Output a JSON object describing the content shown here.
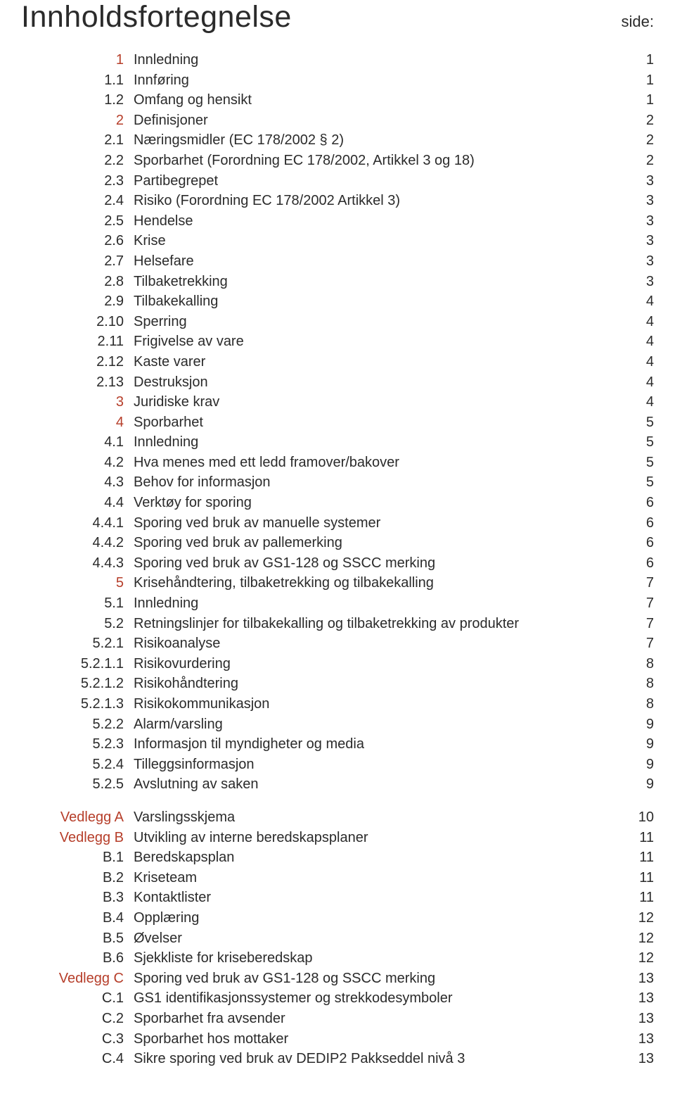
{
  "title": "Innholdsfortegnelse",
  "side_label": "side:",
  "colors": {
    "accent": "#b63e2a",
    "text": "#2b2b2b",
    "background": "#ffffff"
  },
  "typography": {
    "title_fontsize_pt": 32,
    "body_fontsize_pt": 15,
    "side_fontsize_pt": 16,
    "font_family": "Helvetica"
  },
  "blocks": [
    {
      "entries": [
        {
          "num": "1",
          "num_color": "red",
          "text": "Innledning",
          "page": "1"
        },
        {
          "num": "1.1",
          "num_color": "black",
          "text": "Innføring",
          "page": "1"
        },
        {
          "num": "1.2",
          "num_color": "black",
          "text": "Omfang og hensikt",
          "page": "1"
        },
        {
          "num": "2",
          "num_color": "red",
          "text": "Definisjoner",
          "page": "2"
        },
        {
          "num": "2.1",
          "num_color": "black",
          "text": "Næringsmidler (EC 178/2002 § 2)",
          "page": "2"
        },
        {
          "num": "2.2",
          "num_color": "black",
          "text": "Sporbarhet (Forordning EC 178/2002, Artikkel 3 og 18)",
          "page": "2"
        },
        {
          "num": "2.3",
          "num_color": "black",
          "text": "Partibegrepet",
          "page": "3"
        },
        {
          "num": "2.4",
          "num_color": "black",
          "text": "Risiko (Forordning EC 178/2002 Artikkel 3)",
          "page": "3"
        },
        {
          "num": "2.5",
          "num_color": "black",
          "text": "Hendelse",
          "page": "3"
        },
        {
          "num": "2.6",
          "num_color": "black",
          "text": "Krise",
          "page": "3"
        },
        {
          "num": "2.7",
          "num_color": "black",
          "text": "Helsefare",
          "page": "3"
        },
        {
          "num": "2.8",
          "num_color": "black",
          "text": "Tilbaketrekking",
          "page": "3"
        },
        {
          "num": "2.9",
          "num_color": "black",
          "text": "Tilbakekalling",
          "page": "4"
        },
        {
          "num": "2.10",
          "num_color": "black",
          "text": "Sperring",
          "page": "4"
        },
        {
          "num": "2.11",
          "num_color": "black",
          "text": "Frigivelse av vare",
          "page": "4"
        },
        {
          "num": "2.12",
          "num_color": "black",
          "text": "Kaste varer",
          "page": "4"
        },
        {
          "num": "2.13",
          "num_color": "black",
          "text": "Destruksjon",
          "page": "4"
        },
        {
          "num": "3",
          "num_color": "red",
          "text": "Juridiske krav",
          "page": "4"
        },
        {
          "num": "4",
          "num_color": "red",
          "text": "Sporbarhet",
          "page": "5"
        },
        {
          "num": "4.1",
          "num_color": "black",
          "text": "Innledning",
          "page": "5"
        },
        {
          "num": "4.2",
          "num_color": "black",
          "text": "Hva menes med ett ledd framover/bakover",
          "page": "5"
        },
        {
          "num": "4.3",
          "num_color": "black",
          "text": "Behov for informasjon",
          "page": "5"
        },
        {
          "num": "4.4",
          "num_color": "black",
          "text": "Verktøy for sporing",
          "page": "6"
        },
        {
          "num": "4.4.1",
          "num_color": "black",
          "text": "Sporing ved bruk av manuelle systemer",
          "page": "6"
        },
        {
          "num": "4.4.2",
          "num_color": "black",
          "text": "Sporing ved bruk av pallemerking",
          "page": "6"
        },
        {
          "num": "4.4.3",
          "num_color": "black",
          "text": "Sporing ved bruk av GS1-128 og SSCC merking",
          "page": "6"
        },
        {
          "num": "5",
          "num_color": "red",
          "text": "Krisehåndtering, tilbaketrekking og tilbakekalling",
          "page": "7"
        },
        {
          "num": "5.1",
          "num_color": "black",
          "text": "Innledning",
          "page": "7"
        },
        {
          "num": "5.2",
          "num_color": "black",
          "text": "Retningslinjer for tilbakekalling og tilbaketrekking av produkter",
          "page": "7"
        },
        {
          "num": "5.2.1",
          "num_color": "black",
          "text": "Risikoanalyse",
          "page": "7"
        },
        {
          "num": "5.2.1.1",
          "num_color": "black",
          "text": "Risikovurdering",
          "page": "8"
        },
        {
          "num": "5.2.1.2",
          "num_color": "black",
          "text": "Risikohåndtering",
          "page": "8"
        },
        {
          "num": "5.2.1.3",
          "num_color": "black",
          "text": "Risikokommunikasjon",
          "page": "8"
        },
        {
          "num": "5.2.2",
          "num_color": "black",
          "text": "Alarm/varsling",
          "page": "9"
        },
        {
          "num": "5.2.3",
          "num_color": "black",
          "text": "Informasjon til myndigheter og media",
          "page": "9"
        },
        {
          "num": "5.2.4",
          "num_color": "black",
          "text": "Tilleggsinformasjon",
          "page": "9"
        },
        {
          "num": "5.2.5",
          "num_color": "black",
          "text": "Avslutning av saken",
          "page": "9"
        }
      ]
    },
    {
      "entries": [
        {
          "num": "Vedlegg A",
          "num_color": "red",
          "text": "Varslingsskjema",
          "page": "10"
        },
        {
          "num": "Vedlegg B",
          "num_color": "red",
          "text": "Utvikling av interne beredskapsplaner",
          "page": "11"
        },
        {
          "num": "B.1",
          "num_color": "black",
          "text": "Beredskapsplan",
          "page": "11"
        },
        {
          "num": "B.2",
          "num_color": "black",
          "text": "Kriseteam",
          "page": "11"
        },
        {
          "num": "B.3",
          "num_color": "black",
          "text": "Kontaktlister",
          "page": "11"
        },
        {
          "num": "B.4",
          "num_color": "black",
          "text": "Opplæring",
          "page": "12"
        },
        {
          "num": "B.5",
          "num_color": "black",
          "text": "Øvelser",
          "page": "12"
        },
        {
          "num": "B.6",
          "num_color": "black",
          "text": "Sjekkliste for kriseberedskap",
          "page": "12"
        },
        {
          "num": "Vedlegg C",
          "num_color": "red",
          "text": "Sporing ved bruk av GS1-128 og SSCC merking",
          "page": "13"
        },
        {
          "num": "C.1",
          "num_color": "black",
          "text": "GS1 identifikasjonssystemer og strekkodesymboler",
          "page": "13"
        },
        {
          "num": "C.2",
          "num_color": "black",
          "text": "Sporbarhet fra avsender",
          "page": "13"
        },
        {
          "num": "C.3",
          "num_color": "black",
          "text": "Sporbarhet hos mottaker",
          "page": "13"
        },
        {
          "num": "C.4",
          "num_color": "black",
          "text": "Sikre sporing ved bruk av DEDIP2 Pakkseddel nivå 3",
          "page": "13"
        }
      ]
    }
  ]
}
